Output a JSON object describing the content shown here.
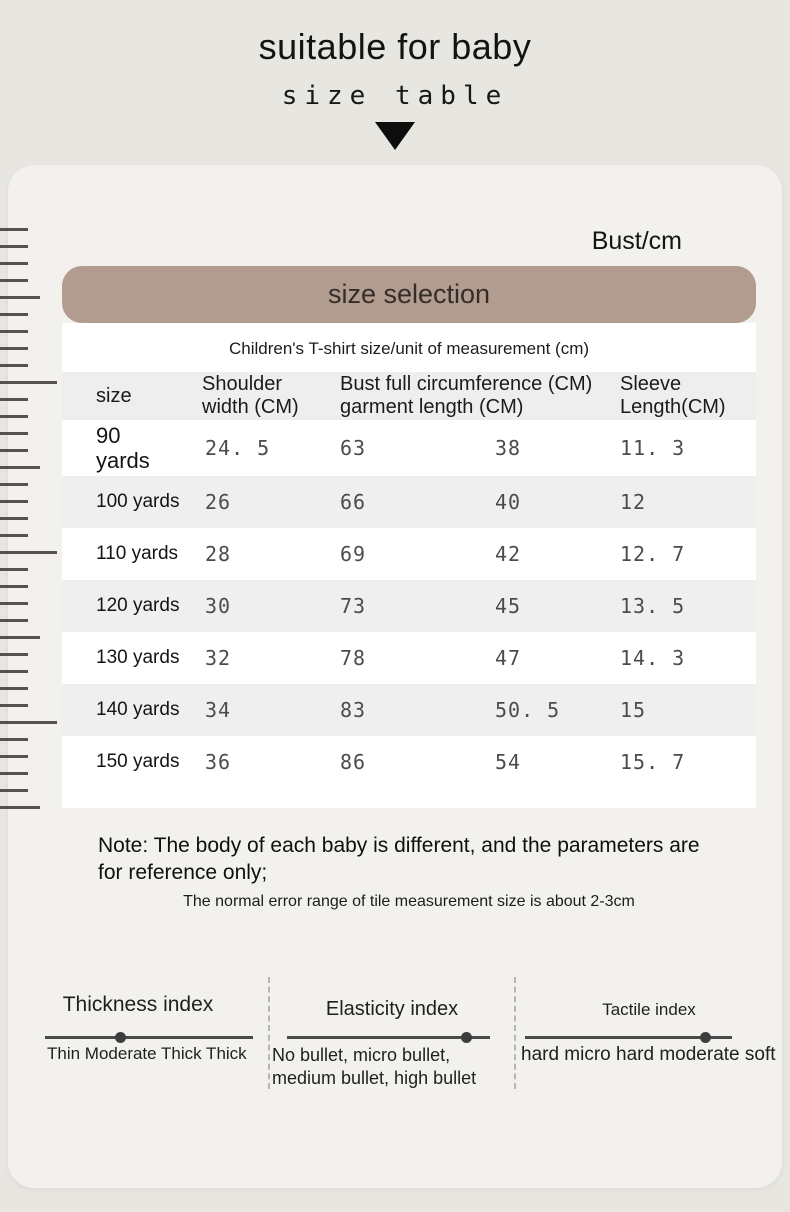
{
  "hero": {
    "title": "suitable for baby",
    "subtitle": "size table"
  },
  "card": {
    "bust_label": "Bust/cm",
    "banner_title": "size selection",
    "table_caption": "Children's T-shirt size/unit of measurement (cm)",
    "table": {
      "columns": [
        {
          "label": "size"
        },
        {
          "label": "Shoulder\nwidth (CM)"
        },
        {
          "label": "Bust full circumference (CM)\ngarment length (CM)"
        },
        {
          "label": "Sleeve\nLength(CM)"
        }
      ],
      "rows": [
        {
          "size": "90\nyards",
          "values": [
            "24. 5",
            "63",
            "38",
            "11. 3"
          ]
        },
        {
          "size": "100 yards",
          "values": [
            "26",
            "66",
            "40",
            "12"
          ]
        },
        {
          "size": "110 yards",
          "values": [
            "28",
            "69",
            "42",
            "12. 7"
          ]
        },
        {
          "size": "120 yards",
          "values": [
            "30",
            "73",
            "45",
            "13. 5"
          ]
        },
        {
          "size": "130 yards",
          "values": [
            "32",
            "78",
            "47",
            "14. 3"
          ]
        },
        {
          "size": "140 yards",
          "values": [
            "34",
            "83",
            "50. 5",
            "15"
          ]
        },
        {
          "size": "150 yards",
          "values": [
            "36",
            "86",
            "54",
            "15. 7"
          ]
        }
      ]
    },
    "note": {
      "line1": "Note: The body of each baby is different, and the parameters are for reference only;",
      "line2": "The normal error range of tile measurement size is about 2-3cm"
    },
    "indexes": [
      {
        "title": "Thickness index",
        "scale": "Thin Moderate Thick Thick",
        "position_pct": 36
      },
      {
        "title": "Elasticity index",
        "scale": "No bullet, micro bullet, medium bullet, high bullet",
        "position_pct": 88
      },
      {
        "title": "Tactile index",
        "scale": "hard micro hard moderate soft",
        "position_pct": 87
      }
    ]
  },
  "decor": {
    "ruler_tick_count": 35
  },
  "colors": {
    "page_bg": "#e8e6e0",
    "card_bg": "#f2f1ed",
    "banner_bg": "#b29b8f",
    "stripe_gray": "#efefef",
    "header_gray": "#eeeeee",
    "text_dark": "#161616",
    "number_gray": "#4c4c4c"
  }
}
